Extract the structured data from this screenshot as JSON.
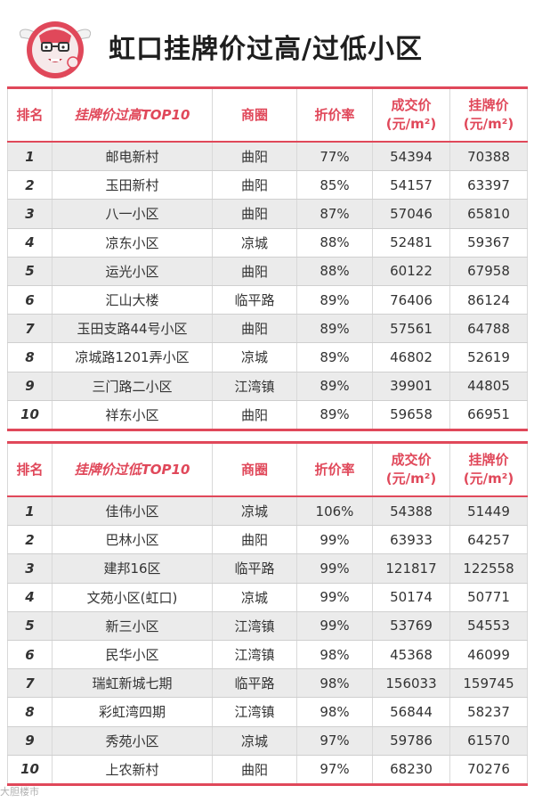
{
  "title": "虹口挂牌价过高/过低小区",
  "colors": {
    "accent": "#e0485a",
    "row_alt": "#ebebeb"
  },
  "logo": {
    "icon": "cartoon-mascot-with-glasses-logo"
  },
  "table_high": {
    "headers": {
      "rank": "排名",
      "name": "挂牌价过高TOP10",
      "area": "商圈",
      "discount": "折价率",
      "deal_price": "成交价",
      "deal_unit": "(元/m²)",
      "list_price": "挂牌价",
      "list_unit": "(元/m²)"
    },
    "rows": [
      {
        "rank": "1",
        "name": "邮电新村",
        "area": "曲阳",
        "discount": "77%",
        "deal": "54394",
        "list": "70388"
      },
      {
        "rank": "2",
        "name": "玉田新村",
        "area": "曲阳",
        "discount": "85%",
        "deal": "54157",
        "list": "63397"
      },
      {
        "rank": "3",
        "name": "八一小区",
        "area": "曲阳",
        "discount": "87%",
        "deal": "57046",
        "list": "65810"
      },
      {
        "rank": "4",
        "name": "凉东小区",
        "area": "凉城",
        "discount": "88%",
        "deal": "52481",
        "list": "59367"
      },
      {
        "rank": "5",
        "name": "运光小区",
        "area": "曲阳",
        "discount": "88%",
        "deal": "60122",
        "list": "67958"
      },
      {
        "rank": "6",
        "name": "汇山大楼",
        "area": "临平路",
        "discount": "89%",
        "deal": "76406",
        "list": "86124"
      },
      {
        "rank": "7",
        "name": "玉田支路44号小区",
        "area": "曲阳",
        "discount": "89%",
        "deal": "57561",
        "list": "64788"
      },
      {
        "rank": "8",
        "name": "凉城路1201弄小区",
        "area": "凉城",
        "discount": "89%",
        "deal": "46802",
        "list": "52619"
      },
      {
        "rank": "9",
        "name": "三门路二小区",
        "area": "江湾镇",
        "discount": "89%",
        "deal": "39901",
        "list": "44805"
      },
      {
        "rank": "10",
        "name": "祥东小区",
        "area": "曲阳",
        "discount": "89%",
        "deal": "59658",
        "list": "66951"
      }
    ]
  },
  "table_low": {
    "headers": {
      "rank": "排名",
      "name": "挂牌价过低TOP10",
      "area": "商圈",
      "discount": "折价率",
      "deal_price": "成交价",
      "deal_unit": "(元/m²)",
      "list_price": "挂牌价",
      "list_unit": "(元/m²)"
    },
    "rows": [
      {
        "rank": "1",
        "name": "佳伟小区",
        "area": "凉城",
        "discount": "106%",
        "deal": "54388",
        "list": "51449"
      },
      {
        "rank": "2",
        "name": "巴林小区",
        "area": "曲阳",
        "discount": "99%",
        "deal": "63933",
        "list": "64257"
      },
      {
        "rank": "3",
        "name": "建邦16区",
        "area": "临平路",
        "discount": "99%",
        "deal": "121817",
        "list": "122558"
      },
      {
        "rank": "4",
        "name": "文苑小区(虹口)",
        "area": "凉城",
        "discount": "99%",
        "deal": "50174",
        "list": "50771"
      },
      {
        "rank": "5",
        "name": "新三小区",
        "area": "江湾镇",
        "discount": "99%",
        "deal": "53769",
        "list": "54553"
      },
      {
        "rank": "6",
        "name": "民华小区",
        "area": "江湾镇",
        "discount": "98%",
        "deal": "45368",
        "list": "46099"
      },
      {
        "rank": "7",
        "name": "瑞虹新城七期",
        "area": "临平路",
        "discount": "98%",
        "deal": "156033",
        "list": "159745"
      },
      {
        "rank": "8",
        "name": "彩虹湾四期",
        "area": "江湾镇",
        "discount": "98%",
        "deal": "56844",
        "list": "58237"
      },
      {
        "rank": "9",
        "name": "秀苑小区",
        "area": "凉城",
        "discount": "97%",
        "deal": "59786",
        "list": "61570"
      },
      {
        "rank": "10",
        "name": "上农新村",
        "area": "曲阳",
        "discount": "97%",
        "deal": "68230",
        "list": "70276"
      }
    ]
  },
  "watermark": "大胆楼市"
}
